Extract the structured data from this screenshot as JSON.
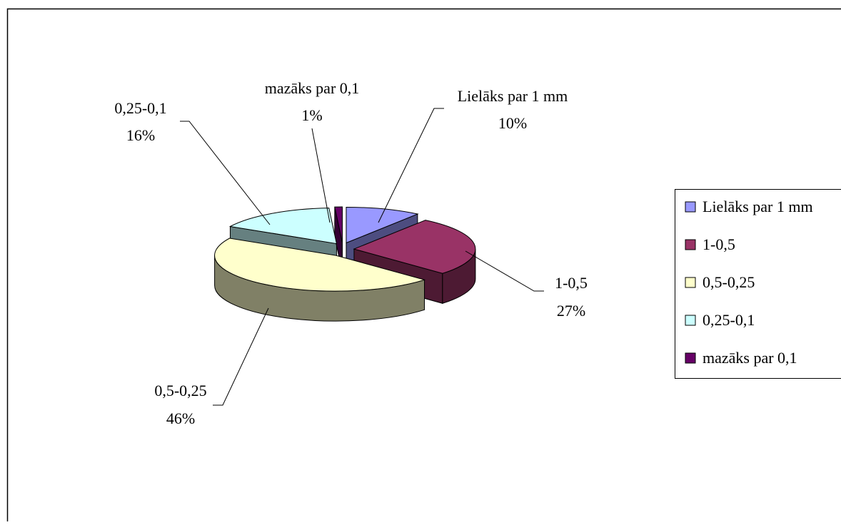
{
  "chart_data": {
    "type": "pie",
    "style": "3d-exploded",
    "title": "",
    "categories": [
      "Lielāks par 1 mm",
      "1-0,5",
      "0,5-0,25",
      "0,25-0,1",
      "mazāks par 0,1"
    ],
    "values": [
      10,
      27,
      46,
      16,
      1
    ],
    "data_labels": [
      "10%",
      "27%",
      "46%",
      "16%",
      "1%"
    ],
    "colors": [
      "#9999ff",
      "#993366",
      "#ffffcc",
      "#ccffff",
      "#660066"
    ],
    "side_colors": [
      "#4d4d80",
      "#4d1a33",
      "#808066",
      "#668080",
      "#330033"
    ],
    "legend": {
      "position": "right",
      "entries": [
        "Lielāks par 1 mm",
        "1-0,5",
        "0,5-0,25",
        "0,25-0,1",
        "mazāks par 0,1"
      ]
    }
  }
}
